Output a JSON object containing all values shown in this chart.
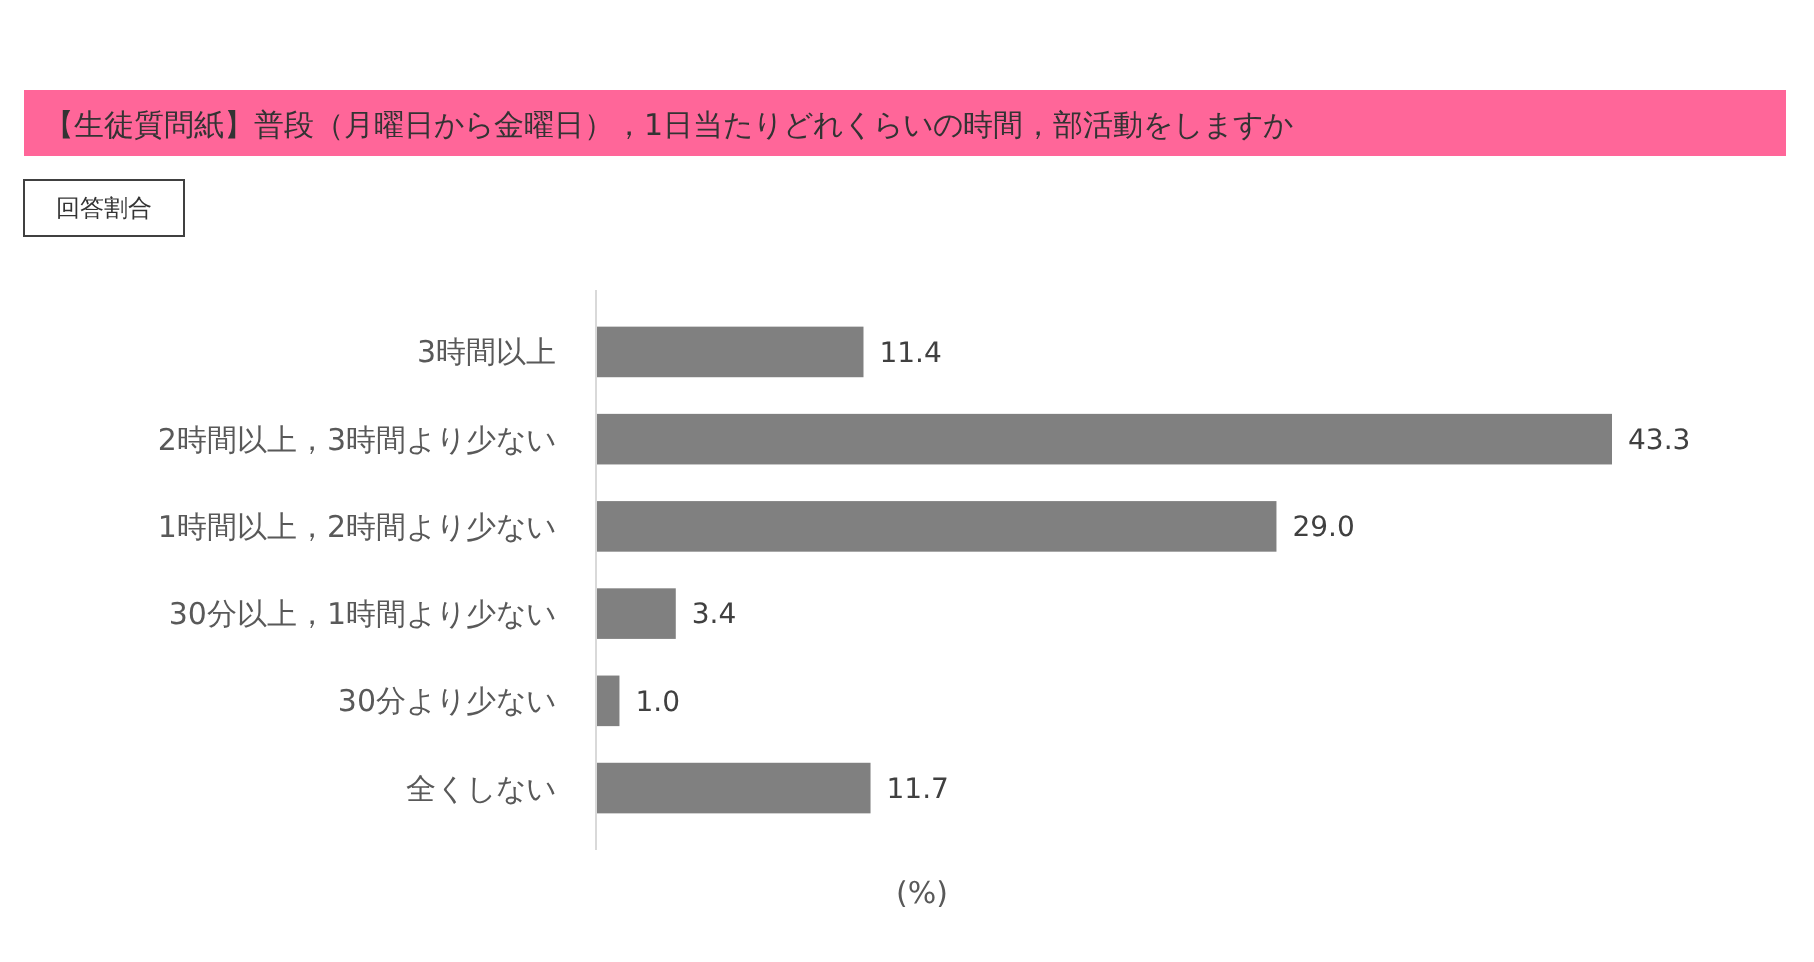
{
  "chart_data": {
    "type": "bar",
    "orientation": "horizontal",
    "title": "【生徒質問紙】普段（月曜日から金曜日），1日当たりどれくらいの時間，部活動をしますか",
    "subtitle": "回答割合",
    "xlabel": "(%)",
    "categories": [
      "3時間以上",
      "2時間以上，3時間より少ない",
      "1時間以上，2時間より少ない",
      "30分以上，1時間より少ない",
      "30分より少ない",
      "全くしない"
    ],
    "values": [
      11.4,
      43.3,
      29.0,
      3.4,
      1.0,
      11.7
    ],
    "value_labels": [
      "11.4",
      "43.3",
      "29.0",
      "3.4",
      "1.0",
      "11.7"
    ],
    "color": "#808080"
  }
}
